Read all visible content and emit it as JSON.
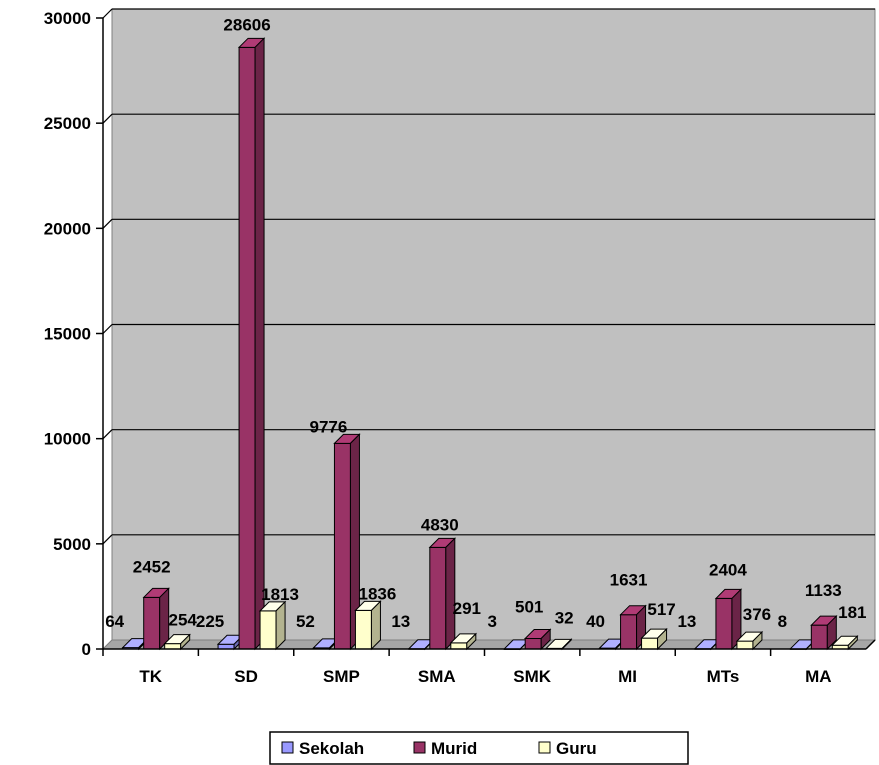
{
  "chart_data": {
    "type": "bar",
    "categories": [
      "TK",
      "SD",
      "SMP",
      "SMA",
      "SMK",
      "MI",
      "MTs",
      "MA"
    ],
    "series": [
      {
        "name": "Sekolah",
        "values": [
          64,
          225,
          52,
          13,
          3,
          40,
          13,
          8
        ],
        "color": "#9999FF"
      },
      {
        "name": "Murid",
        "values": [
          2452,
          28606,
          9776,
          4830,
          501,
          1631,
          2404,
          1133
        ],
        "color": "#993366"
      },
      {
        "name": "Guru",
        "values": [
          254,
          1813,
          1836,
          291,
          32,
          517,
          376,
          181
        ],
        "color": "#FFFFCC"
      }
    ],
    "ylim": [
      0,
      30000
    ],
    "yticks": [
      0,
      5000,
      10000,
      15000,
      20000,
      25000,
      30000
    ],
    "ytick_labels": [
      "0",
      "5000",
      "10000",
      "15000",
      "20000",
      "25000",
      "30000"
    ],
    "title": "",
    "xlabel": "",
    "ylabel": "",
    "grid": true,
    "legend_position": "bottom",
    "plot_background": "#C0C0C0",
    "data_labels": true,
    "style": "3d-clustered-column"
  }
}
